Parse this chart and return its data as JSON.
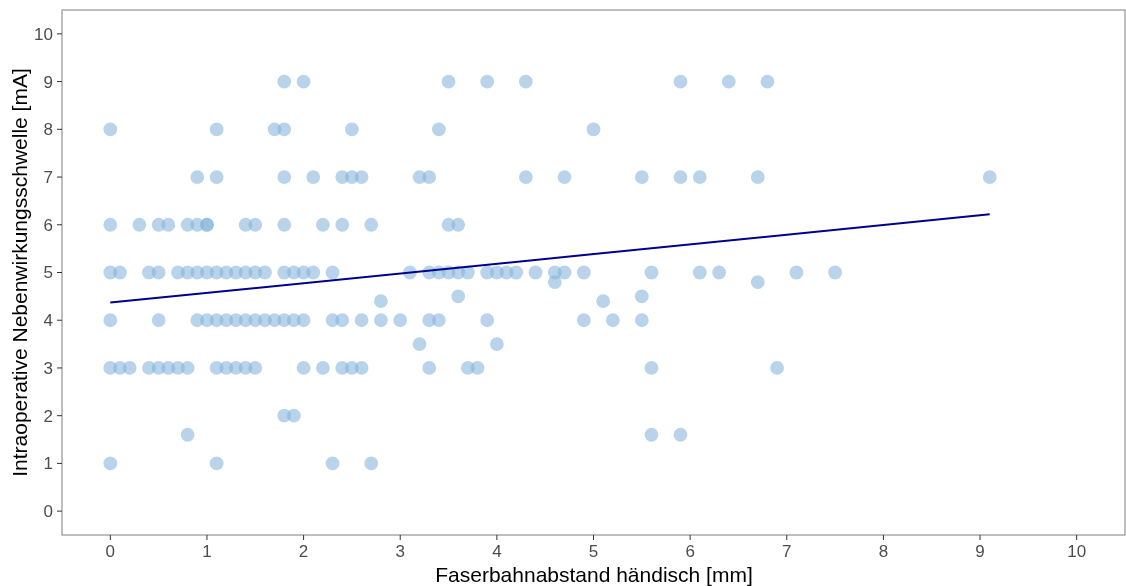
{
  "chart_data": {
    "type": "scatter",
    "xlabel": "Faserbahnabstand händisch [mm]",
    "ylabel": "Intraoperative Nebenwirkungsschwelle [mA]",
    "xlim": [
      -0.5,
      10.5
    ],
    "ylim": [
      -0.5,
      10.5
    ],
    "xticks": [
      0,
      1,
      2,
      3,
      4,
      5,
      6,
      7,
      8,
      9,
      10
    ],
    "yticks": [
      0,
      1,
      2,
      3,
      4,
      5,
      6,
      7,
      8,
      9,
      10
    ],
    "grid": false,
    "series": [
      {
        "marker": "circle",
        "color": "#7fb0d8",
        "x": [
          1.8,
          2.0,
          3.5,
          3.9,
          4.3,
          5.9,
          6.4,
          6.8,
          0,
          1.1,
          1.7,
          1.8,
          2.5,
          3.4,
          5.0,
          0.9,
          1.1,
          1.8,
          2.1,
          2.4,
          2.5,
          2.6,
          3.2,
          3.3,
          4.3,
          4.7,
          5.5,
          5.9,
          6.1,
          6.7,
          9.1,
          0,
          0.3,
          0.5,
          0.6,
          0.8,
          0.9,
          1.0,
          1.0,
          1.4,
          1.5,
          1.8,
          2.2,
          2.4,
          2.7,
          3.5,
          3.6,
          0,
          0.1,
          0.4,
          0.5,
          0.7,
          0.8,
          0.9,
          1.0,
          1.1,
          1.2,
          1.3,
          1.4,
          1.5,
          1.6,
          1.8,
          1.9,
          2.0,
          2.1,
          2.3,
          3.1,
          3.3,
          3.4,
          3.5,
          3.6,
          3.7,
          3.9,
          4.0,
          4.1,
          4.2,
          4.4,
          4.6,
          4.7,
          4.9,
          5.6,
          6.1,
          6.3,
          7.1,
          7.5,
          4.6,
          6.7,
          3.6,
          5.5,
          2.8,
          5.1,
          0,
          0.5,
          0.9,
          1.0,
          1.1,
          1.2,
          1.3,
          1.4,
          1.5,
          1.6,
          1.7,
          1.8,
          1.9,
          2.0,
          2.3,
          2.4,
          2.6,
          2.8,
          3.0,
          3.3,
          3.4,
          3.9,
          4.9,
          5.2,
          5.5,
          3.2,
          4.0,
          0,
          0.1,
          0.2,
          0.4,
          0.5,
          0.6,
          0.7,
          0.8,
          1.1,
          1.2,
          1.3,
          1.4,
          1.5,
          2.0,
          2.2,
          2.4,
          2.5,
          2.6,
          3.3,
          3.7,
          3.8,
          5.6,
          6.9,
          1.8,
          1.9,
          0.8,
          5.6,
          5.9,
          0,
          1.1,
          2.3,
          2.7
        ],
        "values": [
          9,
          9,
          9,
          9,
          9,
          9,
          9,
          9,
          8,
          8,
          8,
          8,
          8,
          8,
          8,
          7,
          7,
          7,
          7,
          7,
          7,
          7,
          7,
          7,
          7,
          7,
          7,
          7,
          7,
          7,
          7,
          6,
          6,
          6,
          6,
          6,
          6,
          6,
          6,
          6,
          6,
          6,
          6,
          6,
          6,
          6,
          6,
          5,
          5,
          5,
          5,
          5,
          5,
          5,
          5,
          5,
          5,
          5,
          5,
          5,
          5,
          5,
          5,
          5,
          5,
          5,
          5,
          5,
          5,
          5,
          5,
          5,
          5,
          5,
          5,
          5,
          5,
          5,
          5,
          5,
          5,
          5,
          5,
          5,
          5,
          4.8,
          4.8,
          4.5,
          4.5,
          4.4,
          4.4,
          4,
          4,
          4,
          4,
          4,
          4,
          4,
          4,
          4,
          4,
          4,
          4,
          4,
          4,
          4,
          4,
          4,
          4,
          4,
          4,
          4,
          4,
          4,
          4,
          4,
          3.5,
          3.5,
          3,
          3,
          3,
          3,
          3,
          3,
          3,
          3,
          3,
          3,
          3,
          3,
          3,
          3,
          3,
          3,
          3,
          3,
          3,
          3,
          3,
          3,
          3,
          2,
          2,
          1.6,
          1.6,
          1.6,
          1,
          1,
          1,
          1
        ]
      },
      {
        "type": "line",
        "color": "#00008b",
        "x": [
          0,
          9.1
        ],
        "values": [
          4.37,
          6.22
        ]
      }
    ]
  }
}
